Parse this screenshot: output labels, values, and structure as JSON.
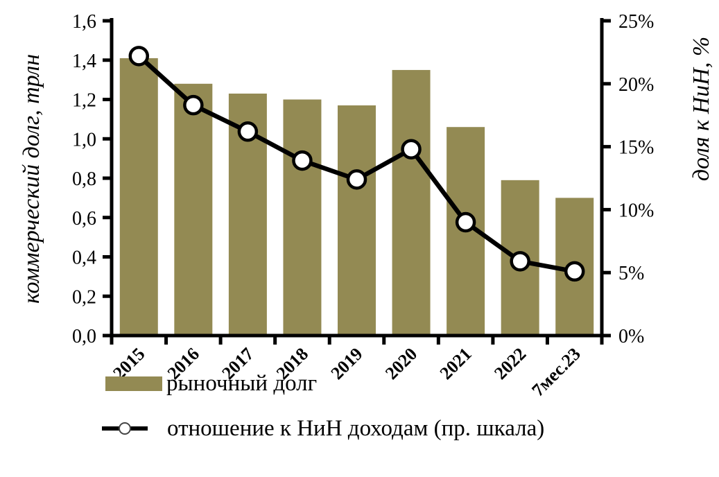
{
  "chart_data": {
    "type": "combo-bar-line",
    "categories": [
      "2015",
      "2016",
      "2017",
      "2018",
      "2019",
      "2020",
      "2021",
      "2022",
      "7мес.23"
    ],
    "series": [
      {
        "name": "рыночный долг",
        "type": "bar",
        "axis": "left",
        "color": "#938A53",
        "values": [
          1.41,
          1.28,
          1.23,
          1.2,
          1.17,
          1.35,
          1.06,
          0.79,
          0.7
        ]
      },
      {
        "name": "отношение к НиН доходам (пр. шкала)",
        "type": "line",
        "axis": "right",
        "line_color": "#000000",
        "marker_fill": "#FFFFFF",
        "marker_stroke": "#000000",
        "values": [
          22.2,
          18.3,
          16.2,
          13.9,
          12.4,
          14.8,
          9.0,
          5.9,
          5.1
        ]
      }
    ],
    "left_axis": {
      "label": "коммерческий долг, трлн",
      "min": 0,
      "max": 1.6,
      "step": 0.2,
      "tick_labels": [
        "0,0",
        "0,2",
        "0,4",
        "0,6",
        "0,8",
        "1,0",
        "1,2",
        "1,4",
        "1,6"
      ]
    },
    "right_axis": {
      "label": "доля к НиН,  %",
      "min": 0,
      "max": 25,
      "step": 5,
      "tick_labels": [
        "0%",
        "5%",
        "10%",
        "15%",
        "20%",
        "25%"
      ]
    },
    "x_axis": {
      "tick_count": 10,
      "label_rotation_deg": -45
    },
    "legend": {
      "position": "bottom-left"
    },
    "grid": "off",
    "background": "#FFFFFF",
    "axis_color": "#000000"
  }
}
